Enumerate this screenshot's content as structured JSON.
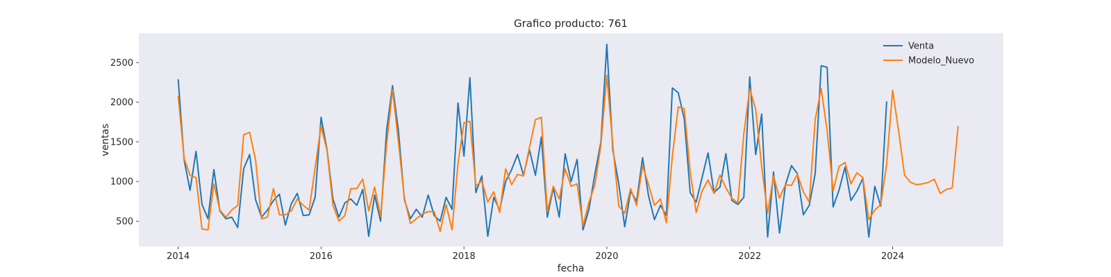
{
  "chart_data": {
    "type": "line",
    "title": "Grafico producto: 761",
    "xlabel": "fecha",
    "ylabel": "ventas",
    "xlim": [
      2013.45,
      2025.55
    ],
    "ylim": [
      180,
      2870
    ],
    "xticks": [
      2014,
      2016,
      2018,
      2020,
      2022,
      2024
    ],
    "yticks": [
      500,
      1000,
      1500,
      2000,
      2500
    ],
    "grid": false,
    "legend": "top-right",
    "x_start": "2014-01",
    "series": [
      {
        "name": "Venta",
        "color": "#1f77b4",
        "values": [
          2290,
          1270,
          890,
          1380,
          710,
          530,
          1150,
          630,
          530,
          550,
          420,
          1160,
          1340,
          770,
          550,
          640,
          760,
          840,
          450,
          720,
          850,
          570,
          580,
          800,
          1810,
          1400,
          780,
          550,
          730,
          780,
          700,
          900,
          310,
          830,
          500,
          1640,
          2210,
          1640,
          770,
          530,
          650,
          550,
          830,
          570,
          500,
          800,
          650,
          1990,
          1320,
          2310,
          860,
          1070,
          310,
          800,
          640,
          1000,
          1150,
          1340,
          1080,
          1400,
          1080,
          1560,
          550,
          920,
          550,
          1350,
          1000,
          1280,
          390,
          650,
          1100,
          1500,
          2730,
          1400,
          970,
          430,
          880,
          750,
          1300,
          820,
          520,
          700,
          570,
          2180,
          2120,
          1790,
          860,
          740,
          1050,
          1360,
          860,
          930,
          1350,
          760,
          710,
          800,
          2320,
          1340,
          1850,
          300,
          1120,
          350,
          960,
          1200,
          1100,
          580,
          700,
          1100,
          2460,
          2440,
          680,
          890,
          1180,
          760,
          880,
          1040,
          300,
          940,
          690,
          2010
        ],
        "end": "2023-12"
      },
      {
        "name": "Modelo_Nuevo",
        "color": "#ff7f0e",
        "values": [
          2080,
          1290,
          1080,
          1050,
          400,
          390,
          970,
          640,
          550,
          640,
          700,
          1590,
          1620,
          1270,
          530,
          550,
          910,
          580,
          580,
          630,
          780,
          700,
          640,
          1170,
          1700,
          1390,
          700,
          500,
          570,
          910,
          910,
          1030,
          630,
          930,
          560,
          1460,
          2160,
          1500,
          790,
          470,
          530,
          590,
          620,
          620,
          370,
          710,
          390,
          1230,
          1740,
          1760,
          940,
          1010,
          740,
          870,
          610,
          1160,
          960,
          1090,
          1070,
          1430,
          1780,
          1810,
          620,
          940,
          780,
          1160,
          940,
          970,
          440,
          740,
          960,
          1460,
          2340,
          1460,
          690,
          600,
          910,
          700,
          1200,
          960,
          700,
          780,
          480,
          1320,
          1940,
          1920,
          1120,
          610,
          880,
          1020,
          850,
          1080,
          920,
          790,
          730,
          1600,
          2170,
          1910,
          1190,
          600,
          1070,
          790,
          960,
          950,
          1090,
          870,
          740,
          1780,
          2170,
          1640,
          880,
          1190,
          1240,
          970,
          1110,
          1050,
          520,
          640,
          710,
          1220,
          2150,
          1640,
          1080,
          990,
          960,
          970,
          990,
          1030,
          850,
          900,
          920,
          1700
        ],
        "end": "2024-12"
      }
    ]
  }
}
